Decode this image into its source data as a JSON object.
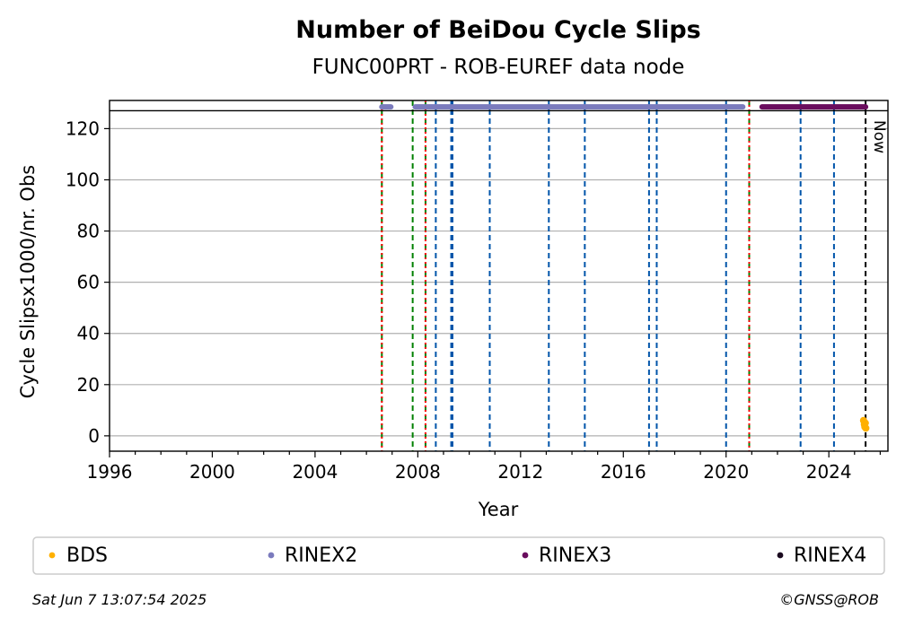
{
  "chart_data": {
    "type": "scatter",
    "title": "Number of BeiDou Cycle Slips",
    "subtitle": "FUNC00PRT - ROB-EUREF data node",
    "xlabel": "Year",
    "ylabel": "Cycle Slipsx1000/nr. Obs",
    "xlim": [
      1996,
      2026.3
    ],
    "ylim": [
      -6,
      131
    ],
    "x_ticks": [
      1996,
      2000,
      2004,
      2008,
      2012,
      2016,
      2020,
      2024
    ],
    "x_tick_labels": [
      "1996",
      "2000",
      "2004",
      "2008",
      "2012",
      "2016",
      "2020",
      "2024"
    ],
    "y_ticks": [
      0,
      20,
      40,
      60,
      80,
      100,
      120
    ],
    "y_tick_labels": [
      "0",
      "20",
      "40",
      "60",
      "80",
      "100",
      "120"
    ],
    "grid": "horizontal",
    "top_band_y": 127,
    "vlines": [
      {
        "x": 2006.6,
        "color": "#008000",
        "style": "dashed"
      },
      {
        "x": 2006.6,
        "color": "#ff0000",
        "style": "dotted"
      },
      {
        "x": 2007.8,
        "color": "#008000",
        "style": "dashed"
      },
      {
        "x": 2008.3,
        "color": "#008000",
        "style": "dashed"
      },
      {
        "x": 2008.3,
        "color": "#ff0000",
        "style": "dotted"
      },
      {
        "x": 2008.7,
        "color": "#0055aa",
        "style": "dashed"
      },
      {
        "x": 2009.3,
        "color": "#0055aa",
        "style": "dashed"
      },
      {
        "x": 2009.35,
        "color": "#0055aa",
        "style": "dashed"
      },
      {
        "x": 2010.8,
        "color": "#0055aa",
        "style": "dashed"
      },
      {
        "x": 2013.1,
        "color": "#0055aa",
        "style": "dashed"
      },
      {
        "x": 2014.5,
        "color": "#0055aa",
        "style": "dashed"
      },
      {
        "x": 2017.0,
        "color": "#0055aa",
        "style": "dashed"
      },
      {
        "x": 2017.3,
        "color": "#0055aa",
        "style": "dashed"
      },
      {
        "x": 2020.0,
        "color": "#0055aa",
        "style": "dashed"
      },
      {
        "x": 2020.9,
        "color": "#008000",
        "style": "dashed"
      },
      {
        "x": 2020.9,
        "color": "#ff0000",
        "style": "dotted"
      },
      {
        "x": 2022.9,
        "color": "#0055aa",
        "style": "dashed"
      },
      {
        "x": 2024.2,
        "color": "#0055aa",
        "style": "dashed"
      },
      {
        "x": 2025.43,
        "color": "#000000",
        "style": "dashed"
      }
    ],
    "now_label": "Now",
    "series": [
      {
        "name": "BDS",
        "color": "#ffb000",
        "points": [
          [
            2025.35,
            6
          ],
          [
            2025.38,
            4.5
          ],
          [
            2025.4,
            3.5
          ],
          [
            2025.42,
            5
          ],
          [
            2025.44,
            3
          ]
        ]
      },
      {
        "name": "RINEX2",
        "color": "#7b7bbd",
        "segments": [
          [
            2006.6,
            2006.95
          ],
          [
            2007.9,
            2020.65
          ]
        ],
        "y": 128.5
      },
      {
        "name": "RINEX3",
        "color": "#6a0d5e",
        "segments": [
          [
            2021.4,
            2025.43
          ]
        ],
        "y": 128.5
      },
      {
        "name": "RINEX4",
        "color": "#1a0a1f",
        "segments": [],
        "y": 128.5
      }
    ]
  },
  "footer": {
    "timestamp": "Sat Jun  7 13:07:54 2025",
    "copyright": "©GNSS@ROB"
  }
}
